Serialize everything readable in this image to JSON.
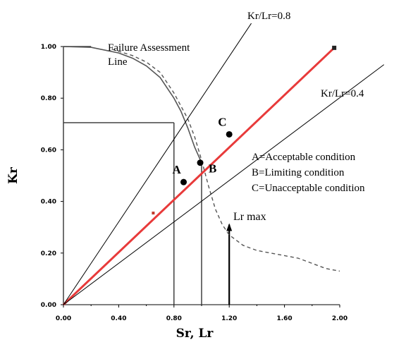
{
  "chart_data": {
    "type": "line",
    "xlabel": "Sr, Lr",
    "ylabel": "Kr",
    "xlim": [
      0,
      2
    ],
    "ylim": [
      0,
      1
    ],
    "x_ticks": [
      "0.00",
      "0.40",
      "0.80",
      "1.20",
      "1.60",
      "2.00"
    ],
    "x_tick_values": [
      0,
      0.4,
      0.8,
      1.2,
      1.6,
      2.0
    ],
    "y_ticks": [
      "0.00",
      "0.20",
      "0.40",
      "0.60",
      "0.80",
      "1.00"
    ],
    "y_tick_values": [
      0,
      0.2,
      0.4,
      0.6,
      0.8,
      1.0
    ],
    "grid": false,
    "colors": {
      "load_path": "#e83a3a",
      "axes": "#000000",
      "curve": "#555555"
    },
    "series": [
      {
        "name": "Failure Assessment Line",
        "style": "solid",
        "x": [
          0,
          0.2,
          0.4,
          0.5,
          0.6,
          0.7,
          0.8,
          0.85,
          0.9,
          0.95,
          1.0
        ],
        "y": [
          1.0,
          0.997,
          0.975,
          0.955,
          0.925,
          0.88,
          0.8,
          0.75,
          0.685,
          0.61,
          0.55
        ]
      },
      {
        "name": "",
        "style": "dashed",
        "x": [
          0.35,
          0.5,
          0.6,
          0.7,
          0.8,
          0.9,
          0.95,
          1.0,
          1.05,
          1.1,
          1.15,
          1.2,
          1.3,
          1.4,
          1.5,
          1.6,
          1.7,
          1.8,
          1.9,
          2.0
        ],
        "y": [
          0.99,
          0.965,
          0.94,
          0.9,
          0.82,
          0.72,
          0.65,
          0.56,
          0.46,
          0.37,
          0.31,
          0.27,
          0.23,
          0.21,
          0.2,
          0.19,
          0.18,
          0.16,
          0.14,
          0.13
        ]
      },
      {
        "name": "",
        "style": "red-path",
        "x": [
          0,
          1.96
        ],
        "y": [
          0,
          0.995
        ]
      },
      {
        "name": "Kr/Lr=0.8",
        "style": "thin",
        "x": [
          0,
          1.36
        ],
        "y": [
          0,
          1.09
        ]
      },
      {
        "name": "Kr/Lr=0.4",
        "style": "thin",
        "x": [
          0,
          2.32
        ],
        "y": [
          0,
          0.93
        ]
      }
    ],
    "points": [
      {
        "label": "A",
        "x": 0.87,
        "y": 0.475
      },
      {
        "label": "B",
        "x": 0.99,
        "y": 0.55
      },
      {
        "label": "C",
        "x": 1.2,
        "y": 0.66
      }
    ],
    "reference_lines": [
      {
        "type": "vertical",
        "x": 0.8,
        "y_top": 0.705
      },
      {
        "type": "vertical",
        "x": 1.0,
        "y_top": 0.55
      },
      {
        "type": "vertical",
        "x": 1.2,
        "y_top": 0.31,
        "arrow": true,
        "label": "Lr max"
      },
      {
        "type": "horizontal",
        "y": 0.705,
        "x_from": 0,
        "x_to": 0.8
      },
      {
        "type": "horizontal",
        "y": 1.0,
        "x_from": 0,
        "x_to": 0.2
      },
      {
        "type": "vertical",
        "x": 0,
        "y_top": 1.0
      }
    ],
    "annotations": {
      "fal_line1": "Failure Assessment",
      "fal_line2": "Line",
      "slope08": "Kr/Lr=0.8",
      "slope04": "Kr/Lr=0.4",
      "lrmax": "Lr max",
      "legend_a": "A=Acceptable condition",
      "legend_b": "B=Limiting condition",
      "legend_c": "C=Unacceptable condition"
    }
  }
}
